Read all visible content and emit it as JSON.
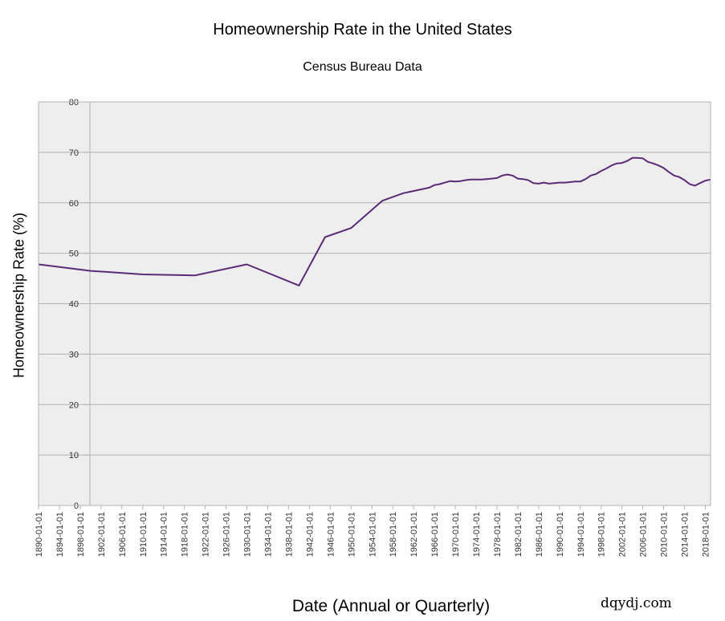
{
  "chart_data": {
    "type": "line",
    "title": "Homeownership Rate in the United States",
    "subtitle": "Census Bureau Data",
    "xlabel": "Date (Annual or Quarterly)",
    "ylabel": "Homeownership Rate (%)",
    "ylim": [
      0,
      80
    ],
    "xlim": [
      "1890-01-01",
      "2019-01-01"
    ],
    "yticks": [
      0,
      10,
      20,
      30,
      40,
      50,
      60,
      70,
      80
    ],
    "xticks": [
      "1890-01-01",
      "1894-01-01",
      "1898-01-01",
      "1902-01-01",
      "1906-01-01",
      "1910-01-01",
      "1914-01-01",
      "1918-01-01",
      "1922-01-01",
      "1926-01-01",
      "1930-01-01",
      "1934-01-01",
      "1938-01-01",
      "1942-01-01",
      "1946-01-01",
      "1950-01-01",
      "1954-01-01",
      "1958-01-01",
      "1962-01-01",
      "1966-01-01",
      "1970-01-01",
      "1974-01-01",
      "1978-01-01",
      "1982-01-01",
      "1986-01-01",
      "1990-01-01",
      "1994-01-01",
      "1998-01-01",
      "2002-01-01",
      "2006-01-01",
      "2010-01-01",
      "2014-01-01",
      "2018-01-01"
    ],
    "grid": true,
    "line_color": "#5b2c76",
    "series": [
      {
        "x": [
          "1890-01-01",
          "1900-01-01",
          "1910-01-01",
          "1920-01-01",
          "1930-01-01",
          "1940-01-01",
          "1945-01-01",
          "1950-01-01",
          "1956-01-01",
          "1960-01-01",
          "1965-01-01",
          "1966-01-01",
          "1967-01-01",
          "1968-01-01",
          "1969-01-01",
          "1970-01-01",
          "1971-01-01",
          "1972-01-01",
          "1973-01-01",
          "1974-01-01",
          "1975-01-01",
          "1976-01-01",
          "1977-01-01",
          "1978-01-01",
          "1979-01-01",
          "1980-01-01",
          "1981-01-01",
          "1982-01-01",
          "1983-01-01",
          "1984-01-01",
          "1985-01-01",
          "1986-01-01",
          "1987-01-01",
          "1988-01-01",
          "1989-01-01",
          "1990-01-01",
          "1991-01-01",
          "1992-01-01",
          "1993-01-01",
          "1994-01-01",
          "1995-01-01",
          "1996-01-01",
          "1997-01-01",
          "1998-01-01",
          "1999-01-01",
          "2000-01-01",
          "2001-01-01",
          "2002-01-01",
          "2003-01-01",
          "2004-01-01",
          "2005-01-01",
          "2006-01-01",
          "2007-01-01",
          "2008-01-01",
          "2009-01-01",
          "2010-01-01",
          "2011-01-01",
          "2012-01-01",
          "2013-01-01",
          "2014-01-01",
          "2015-01-01",
          "2016-01-01",
          "2017-01-01",
          "2018-01-01",
          "2019-01-01"
        ],
        "y": [
          47.8,
          46.5,
          45.8,
          45.6,
          47.8,
          43.6,
          53.2,
          55.0,
          60.4,
          61.9,
          63.0,
          63.5,
          63.7,
          64.0,
          64.3,
          64.2,
          64.3,
          64.5,
          64.6,
          64.6,
          64.6,
          64.7,
          64.8,
          64.9,
          65.4,
          65.6,
          65.4,
          64.8,
          64.7,
          64.5,
          63.9,
          63.8,
          64.0,
          63.8,
          63.9,
          64.0,
          64.0,
          64.1,
          64.2,
          64.2,
          64.7,
          65.4,
          65.7,
          66.3,
          66.8,
          67.4,
          67.8,
          67.9,
          68.3,
          68.9,
          68.9,
          68.8,
          68.1,
          67.8,
          67.4,
          66.9,
          66.1,
          65.4,
          65.1,
          64.5,
          63.7,
          63.4,
          63.9,
          64.4,
          64.6
        ]
      }
    ]
  },
  "watermark": "dqydj.com"
}
